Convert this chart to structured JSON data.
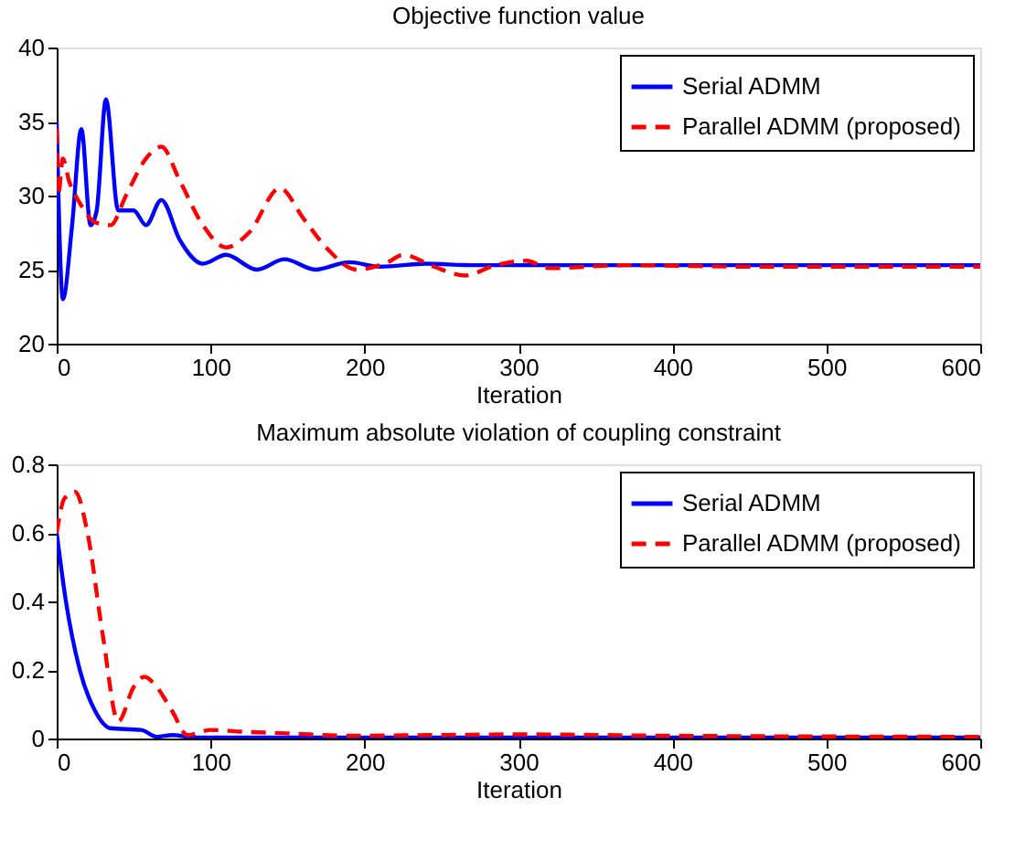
{
  "chart_data": [
    {
      "type": "line",
      "title": "Objective function value",
      "xlabel": "Iteration",
      "xlim": [
        0,
        600
      ],
      "xticks": [
        0,
        100,
        200,
        300,
        400,
        500,
        600
      ],
      "ylim": [
        20,
        40
      ],
      "yticks": [
        20,
        25,
        30,
        35,
        40
      ],
      "grid": false,
      "legend": "top right",
      "series": [
        {
          "name": "Serial ADMM",
          "color": "#0000ff",
          "line_style": "solid",
          "x": [
            0,
            4,
            10,
            16,
            22,
            26,
            32,
            40,
            50,
            58,
            68,
            80,
            95,
            110,
            130,
            148,
            168,
            190,
            210,
            240,
            270,
            300,
            350,
            400,
            500,
            600
          ],
          "values": [
            35,
            23,
            28,
            34.5,
            28,
            29,
            36.5,
            29,
            29,
            28,
            29.7,
            27,
            25.4,
            26,
            25,
            25.7,
            25,
            25.5,
            25.2,
            25.4,
            25.3,
            25.3,
            25.3,
            25.3,
            25.3,
            25.3
          ]
        },
        {
          "name": "Parallel ADMM (proposed)",
          "color": "#ff0000",
          "line_style": "dashed",
          "x": [
            0,
            1,
            4,
            8,
            15,
            25,
            35,
            45,
            58,
            68,
            80,
            95,
            110,
            125,
            145,
            160,
            175,
            195,
            215,
            225,
            245,
            265,
            285,
            305,
            320,
            370,
            450,
            600
          ],
          "values": [
            34.5,
            30,
            32.5,
            31,
            29.5,
            28.2,
            28,
            30,
            32.5,
            33.3,
            31,
            28,
            26.5,
            27.5,
            30.5,
            28.5,
            26.5,
            25,
            25.5,
            26,
            25.2,
            24.6,
            25.3,
            25.6,
            25.1,
            25.3,
            25.2,
            25.2
          ]
        }
      ]
    },
    {
      "type": "line",
      "title": "Maximum absolute violation of coupling constraint",
      "xlabel": "Iteration",
      "xlim": [
        0,
        600
      ],
      "xticks": [
        0,
        100,
        200,
        300,
        400,
        500,
        600
      ],
      "ylim": [
        0,
        0.8
      ],
      "yticks": [
        0,
        0.2,
        0.4,
        0.6,
        0.8
      ],
      "grid": false,
      "legend": "top right",
      "series": [
        {
          "name": "Serial ADMM",
          "color": "#0000ff",
          "line_style": "solid",
          "x": [
            0,
            6,
            15,
            25,
            35,
            55,
            65,
            75,
            90,
            150,
            300,
            600
          ],
          "values": [
            0.6,
            0.4,
            0.2,
            0.08,
            0.03,
            0.025,
            0.005,
            0.01,
            0.003,
            0.003,
            0.003,
            0.003
          ]
        },
        {
          "name": "Parallel ADMM (proposed)",
          "color": "#ff0000",
          "line_style": "dashed",
          "x": [
            0,
            5,
            12,
            20,
            30,
            40,
            50,
            57,
            65,
            75,
            85,
            100,
            120,
            150,
            190,
            240,
            300,
            400,
            600
          ],
          "values": [
            0.6,
            0.7,
            0.72,
            0.6,
            0.3,
            0.05,
            0.15,
            0.18,
            0.15,
            0.08,
            0.01,
            0.025,
            0.02,
            0.015,
            0.008,
            0.01,
            0.012,
            0.008,
            0.005
          ]
        }
      ]
    }
  ]
}
